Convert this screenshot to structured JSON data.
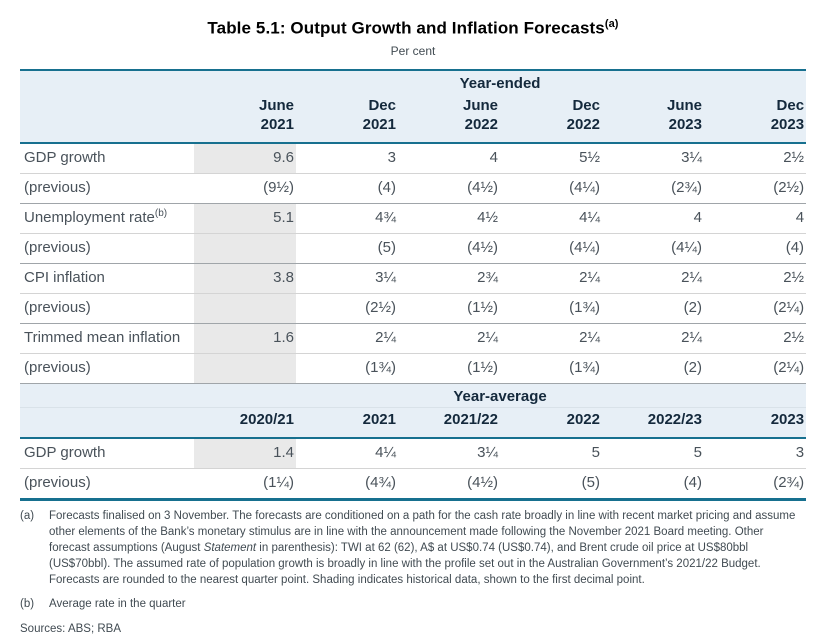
{
  "page": {
    "title": "Table 5.1: Output Growth and Inflation Forecasts",
    "title_sup": "(a)",
    "subtitle": "Per cent"
  },
  "colors": {
    "accent_teal": "#17708f",
    "band_blue": "#e7eff6",
    "historical_shade": "#e9e9e9",
    "header_text": "#14293c",
    "body_text": "#49525a"
  },
  "year_ended": {
    "band_label": "Year-ended",
    "col_headers": [
      "June\n2021",
      "Dec\n2021",
      "June\n2022",
      "Dec\n2022",
      "June\n2023",
      "Dec\n2023"
    ],
    "rows": [
      {
        "label": "GDP growth",
        "cells": [
          "9.6",
          "3",
          "4",
          "5½",
          "3¼",
          "2½"
        ]
      },
      {
        "label": "(previous)",
        "cells": [
          "(9½)",
          "(4)",
          "(4½)",
          "(4¼)",
          "(2¾)",
          "(2½)"
        ]
      },
      {
        "label": "Unemployment rate",
        "sup": "(b)",
        "cells": [
          "5.1",
          "4¾",
          "4½",
          "4¼",
          "4",
          "4"
        ]
      },
      {
        "label": "(previous)",
        "cells": [
          "",
          "(5)",
          "(4½)",
          "(4¼)",
          "(4¼)",
          "(4)"
        ]
      },
      {
        "label": "CPI inflation",
        "cells": [
          "3.8",
          "3¼",
          "2¾",
          "2¼",
          "2¼",
          "2½"
        ]
      },
      {
        "label": "(previous)",
        "cells": [
          "",
          "(2½)",
          "(1½)",
          "(1¾)",
          "(2)",
          "(2¼)"
        ]
      },
      {
        "label": "Trimmed mean inflation",
        "cells": [
          "1.6",
          "2¼",
          "2¼",
          "2¼",
          "2¼",
          "2½"
        ]
      },
      {
        "label": "(previous)",
        "cells": [
          "",
          "(1¾)",
          "(1½)",
          "(1¾)",
          "(2)",
          "(2¼)"
        ]
      }
    ]
  },
  "year_average": {
    "band_label": "Year-average",
    "col_headers": [
      "2020/21",
      "2021",
      "2021/22",
      "2022",
      "2022/23",
      "2023"
    ],
    "rows": [
      {
        "label": "GDP growth",
        "cells": [
          "1.4",
          "4¼",
          "3¼",
          "5",
          "5",
          "3"
        ]
      },
      {
        "label": "(previous)",
        "cells": [
          "(1¼)",
          "(4¾)",
          "(4½)",
          "(5)",
          "(4)",
          "(2¾)"
        ]
      }
    ]
  },
  "footnotes": {
    "a": {
      "marker": "(a)",
      "part1": "Forecasts finalised on 3 November. The forecasts are conditioned on a path for the cash rate broadly in line with recent market pricing and assume other elements of the Bank’s monetary stimulus are in line with the announcement made following the November 2021 Board meeting. Other forecast assumptions (August ",
      "italic": "Statement",
      "part2": " in parenthesis): TWI at 62 (62), A$ at US$0.74 (US$0.74), and Brent crude oil price at US$80bbl (US$70bbl). The assumed rate of population growth is broadly in line with the profile set out in the Australian Government’s 2021/22 Budget. Forecasts are rounded to the nearest quarter point. Shading indicates historical data, shown to the first decimal point."
    },
    "b": {
      "marker": "(b)",
      "text": "Average rate in the quarter"
    },
    "sources": "Sources: ABS; RBA"
  }
}
